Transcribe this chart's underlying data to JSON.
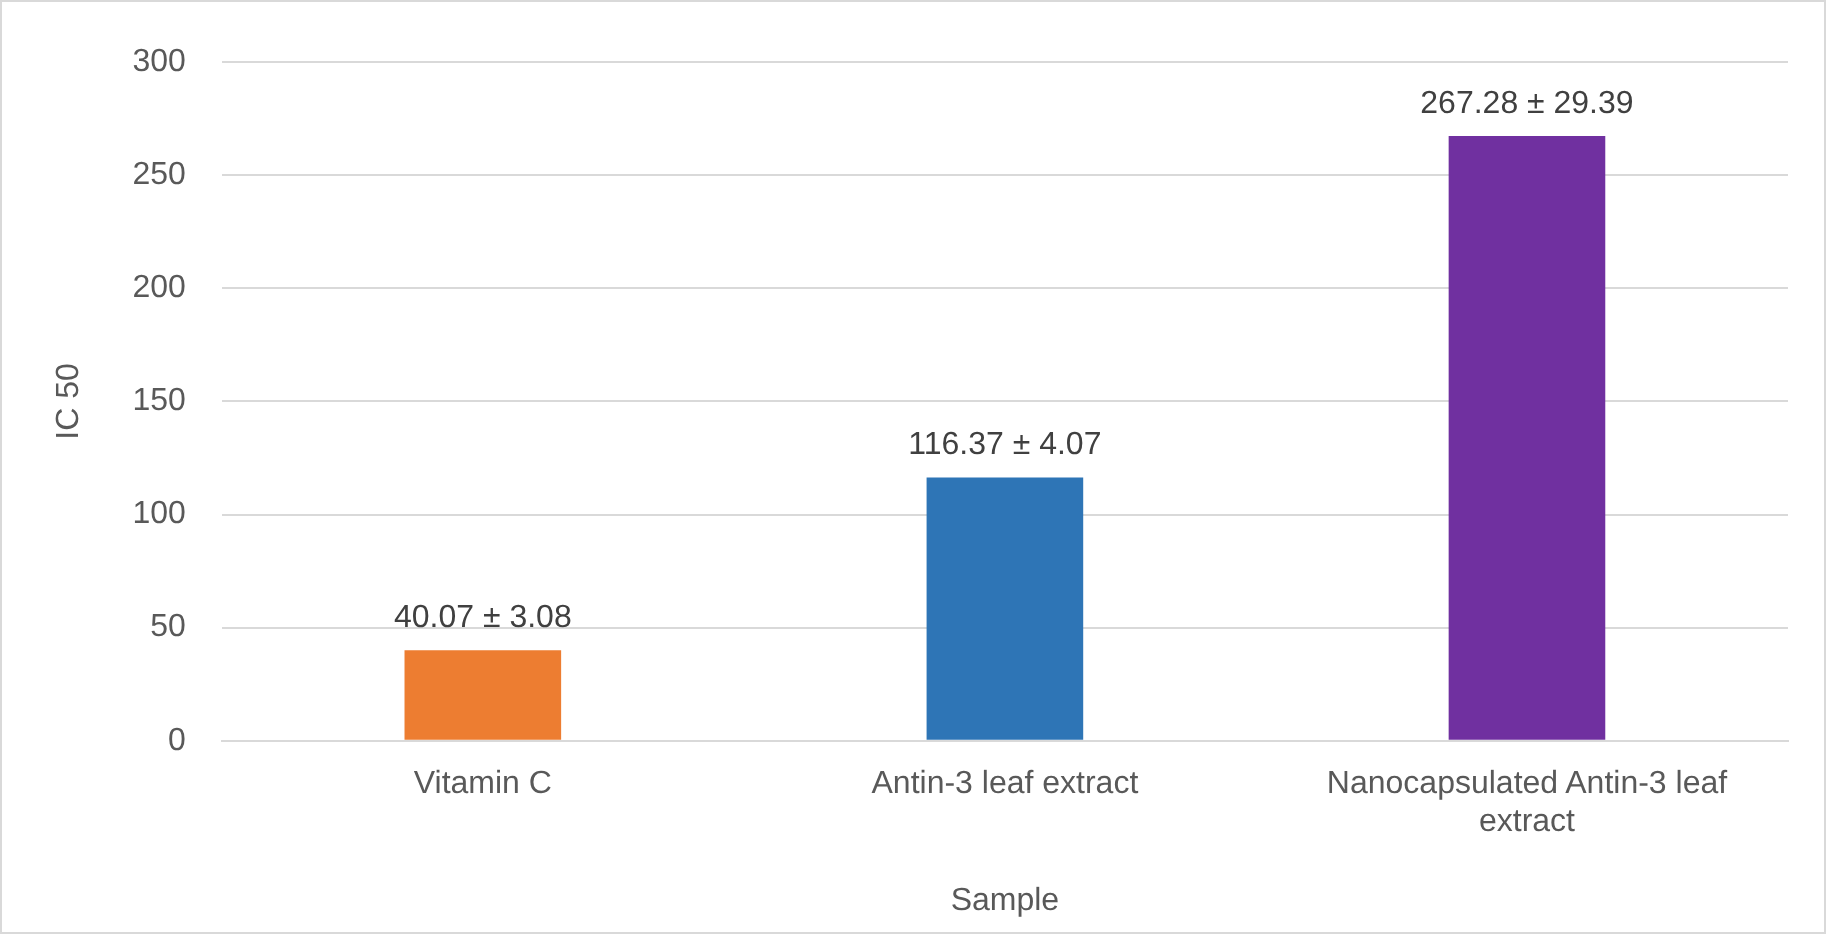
{
  "chart_data": {
    "type": "bar",
    "xlabel": "Sample",
    "ylabel": "IC 50",
    "categories": [
      "Vitamin C",
      "Antin-3 leaf extract",
      "Nanocapsulated Antin-3 leaf extract"
    ],
    "values": [
      40.07,
      116.37,
      267.28
    ],
    "colors": [
      "#ed7d31",
      "#2e75b6",
      "#7030a0"
    ],
    "value_labels": [
      "40.07 ± 3.08",
      "116.37 ± 4.07",
      "267.28 ± 29.39"
    ],
    "ylim": [
      0,
      300
    ],
    "yticks": [
      0,
      50,
      100,
      150,
      200,
      250,
      300
    ],
    "grid": "y",
    "legend": false
  }
}
